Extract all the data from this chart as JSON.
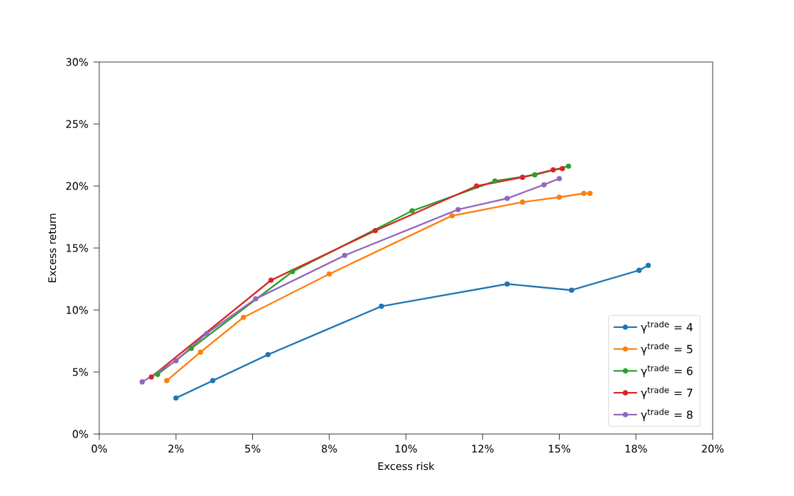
{
  "chart_data": {
    "type": "line",
    "xlabel": "Excess risk",
    "ylabel": "Excess return",
    "marker": "circle",
    "legend": "bottom right",
    "grid": false,
    "xlim": [
      0,
      20
    ],
    "ylim": [
      0,
      30
    ],
    "xticks": [
      {
        "value": 0,
        "label": "0%"
      },
      {
        "value": 2.5,
        "label": "2%"
      },
      {
        "value": 5,
        "label": "5%"
      },
      {
        "value": 7.5,
        "label": "8%"
      },
      {
        "value": 10,
        "label": "10%"
      },
      {
        "value": 12.5,
        "label": "12%"
      },
      {
        "value": 15,
        "label": "15%"
      },
      {
        "value": 17.5,
        "label": "18%"
      },
      {
        "value": 20,
        "label": "20%"
      }
    ],
    "yticks": [
      {
        "value": 0,
        "label": "0%"
      },
      {
        "value": 5,
        "label": "5%"
      },
      {
        "value": 10,
        "label": "10%"
      },
      {
        "value": 15,
        "label": "15%"
      },
      {
        "value": 20,
        "label": "20%"
      },
      {
        "value": 25,
        "label": "25%"
      },
      {
        "value": 30,
        "label": "30%"
      }
    ],
    "series": [
      {
        "name": "γ$^{trade}$ = 4",
        "color": "#1f77b4",
        "x": [
          2.5,
          3.7,
          5.5,
          9.2,
          13.3,
          15.4,
          17.6,
          17.9
        ],
        "values": [
          2.9,
          4.3,
          6.4,
          10.3,
          12.1,
          11.6,
          13.2,
          13.6
        ]
      },
      {
        "name": "γ$^{trade}$ = 5",
        "color": "#ff7f0e",
        "x": [
          2.2,
          3.3,
          4.7,
          7.5,
          11.5,
          13.8,
          15.0,
          15.8,
          16.0
        ],
        "values": [
          4.3,
          6.6,
          9.4,
          12.9,
          17.6,
          18.7,
          19.1,
          19.4,
          19.4
        ]
      },
      {
        "name": "γ$^{trade}$ = 6",
        "color": "#2ca02c",
        "x": [
          1.9,
          3.0,
          6.3,
          10.2,
          12.9,
          14.2,
          15.3
        ],
        "values": [
          4.8,
          6.9,
          13.1,
          18.0,
          20.4,
          20.9,
          21.6
        ]
      },
      {
        "name": "γ$^{trade}$ = 7",
        "color": "#d62728",
        "x": [
          1.7,
          5.6,
          9.0,
          12.3,
          13.8,
          14.8,
          15.1
        ],
        "values": [
          4.6,
          12.4,
          16.4,
          20.0,
          20.7,
          21.3,
          21.4
        ]
      },
      {
        "name": "γ$^{trade}$ = 8",
        "color": "#9467bd",
        "x": [
          1.4,
          2.5,
          3.5,
          5.1,
          8.0,
          11.7,
          13.3,
          14.5,
          15.0
        ],
        "values": [
          4.2,
          5.9,
          8.1,
          10.9,
          14.4,
          18.1,
          19.0,
          20.1,
          20.6
        ]
      }
    ]
  }
}
